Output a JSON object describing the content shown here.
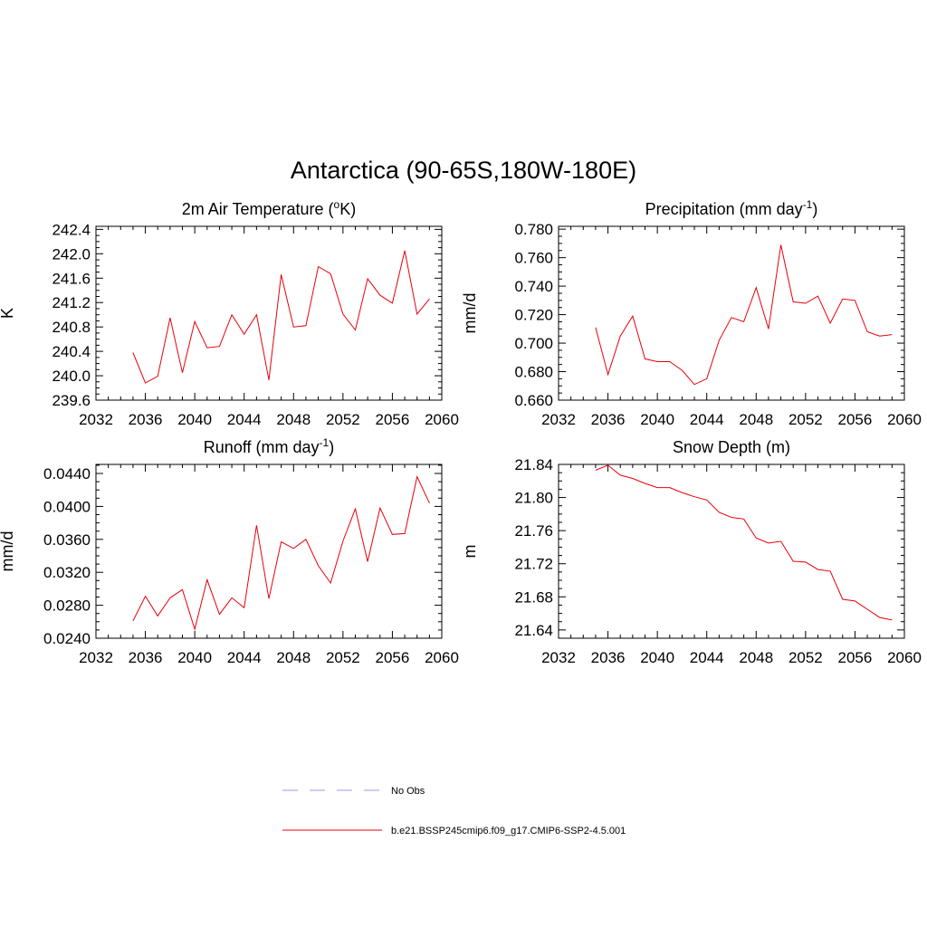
{
  "title": "Antarctica (90-65S,180W-180E)",
  "colors": {
    "model": "#e8000b",
    "obs": "#9999ee"
  },
  "legend": {
    "entries": [
      {
        "label": "No Obs",
        "style": "dashed",
        "color": "#9999ee"
      },
      {
        "label": "b.e21.BSSP245cmip6.f09_g17.CMIP6-SSP2-4.5.001",
        "style": "solid",
        "color": "#e8000b"
      }
    ]
  },
  "chart_data": [
    {
      "type": "line",
      "title": "2m Air Temperature (",
      "title_sup": "o",
      "title_end": "K)",
      "ylabel": "K",
      "xlim": [
        2032,
        2060
      ],
      "xticks": [
        2032,
        2036,
        2040,
        2044,
        2048,
        2052,
        2056,
        2060
      ],
      "ylim": [
        239.6,
        242.45
      ],
      "yticks": [
        239.6,
        240.0,
        240.4,
        240.8,
        241.2,
        241.6,
        242.0,
        242.4
      ],
      "ytick_decimals": 1,
      "x": [
        2035,
        2036,
        2037,
        2038,
        2039,
        2040,
        2041,
        2042,
        2043,
        2044,
        2045,
        2046,
        2047,
        2048,
        2049,
        2050,
        2051,
        2052,
        2053,
        2054,
        2055,
        2056,
        2057,
        2058,
        2059
      ],
      "values": [
        240.38,
        239.88,
        239.99,
        240.95,
        240.05,
        240.89,
        240.46,
        240.48,
        241.0,
        240.68,
        241.0,
        239.93,
        241.66,
        240.8,
        240.82,
        241.79,
        241.67,
        241.01,
        240.75,
        241.59,
        241.32,
        241.19,
        242.05,
        241.01,
        241.26
      ]
    },
    {
      "type": "line",
      "title": "Precipitation (mm day",
      "title_sup": "-1",
      "title_end": ")",
      "ylabel": "mm/d",
      "xlim": [
        2032,
        2060
      ],
      "xticks": [
        2032,
        2036,
        2040,
        2044,
        2048,
        2052,
        2056,
        2060
      ],
      "ylim": [
        0.66,
        0.782
      ],
      "yticks": [
        0.66,
        0.68,
        0.7,
        0.72,
        0.74,
        0.76,
        0.78
      ],
      "ytick_decimals": 3,
      "x": [
        2035,
        2036,
        2037,
        2038,
        2039,
        2040,
        2041,
        2042,
        2043,
        2044,
        2045,
        2046,
        2047,
        2048,
        2049,
        2050,
        2051,
        2052,
        2053,
        2054,
        2055,
        2056,
        2057,
        2058,
        2059
      ],
      "values": [
        0.711,
        0.678,
        0.705,
        0.719,
        0.689,
        0.687,
        0.687,
        0.681,
        0.671,
        0.675,
        0.702,
        0.718,
        0.715,
        0.739,
        0.71,
        0.769,
        0.729,
        0.728,
        0.733,
        0.714,
        0.731,
        0.73,
        0.708,
        0.705,
        0.706
      ]
    },
    {
      "type": "line",
      "title": "Runoff (mm day",
      "title_sup": "-1",
      "title_end": ")",
      "ylabel": "mm/d",
      "xlim": [
        2032,
        2060
      ],
      "xticks": [
        2032,
        2036,
        2040,
        2044,
        2048,
        2052,
        2056,
        2060
      ],
      "ylim": [
        0.024,
        0.0451
      ],
      "yticks": [
        0.024,
        0.028,
        0.032,
        0.036,
        0.04,
        0.044
      ],
      "ytick_decimals": 4,
      "x": [
        2035,
        2036,
        2037,
        2038,
        2039,
        2040,
        2041,
        2042,
        2043,
        2044,
        2045,
        2046,
        2047,
        2048,
        2049,
        2050,
        2051,
        2052,
        2053,
        2054,
        2055,
        2056,
        2057,
        2058,
        2059
      ],
      "values": [
        0.0261,
        0.0291,
        0.0267,
        0.0289,
        0.0299,
        0.0251,
        0.0311,
        0.0269,
        0.0289,
        0.0277,
        0.0377,
        0.0288,
        0.0357,
        0.0349,
        0.036,
        0.0328,
        0.0307,
        0.0358,
        0.0397,
        0.0333,
        0.0398,
        0.0366,
        0.0367,
        0.0436,
        0.0404
      ]
    },
    {
      "type": "line",
      "title": "Snow Depth (m)",
      "title_sup": "",
      "title_end": "",
      "ylabel": "m",
      "xlim": [
        2032,
        2060
      ],
      "xticks": [
        2032,
        2036,
        2040,
        2044,
        2048,
        2052,
        2056,
        2060
      ],
      "ylim": [
        21.63,
        21.84
      ],
      "yticks": [
        21.64,
        21.68,
        21.72,
        21.76,
        21.8,
        21.84
      ],
      "ytick_decimals": 2,
      "x": [
        2035,
        2036,
        2037,
        2038,
        2039,
        2040,
        2041,
        2042,
        2043,
        2044,
        2045,
        2046,
        2047,
        2048,
        2049,
        2050,
        2051,
        2052,
        2053,
        2054,
        2055,
        2056,
        2057,
        2058,
        2059
      ],
      "values": [
        21.833,
        21.839,
        21.827,
        21.823,
        21.817,
        21.812,
        21.812,
        21.806,
        21.801,
        21.797,
        21.782,
        21.776,
        21.774,
        21.751,
        21.745,
        21.747,
        21.723,
        21.722,
        21.713,
        21.711,
        21.677,
        21.675,
        21.665,
        21.655,
        21.652
      ]
    }
  ]
}
